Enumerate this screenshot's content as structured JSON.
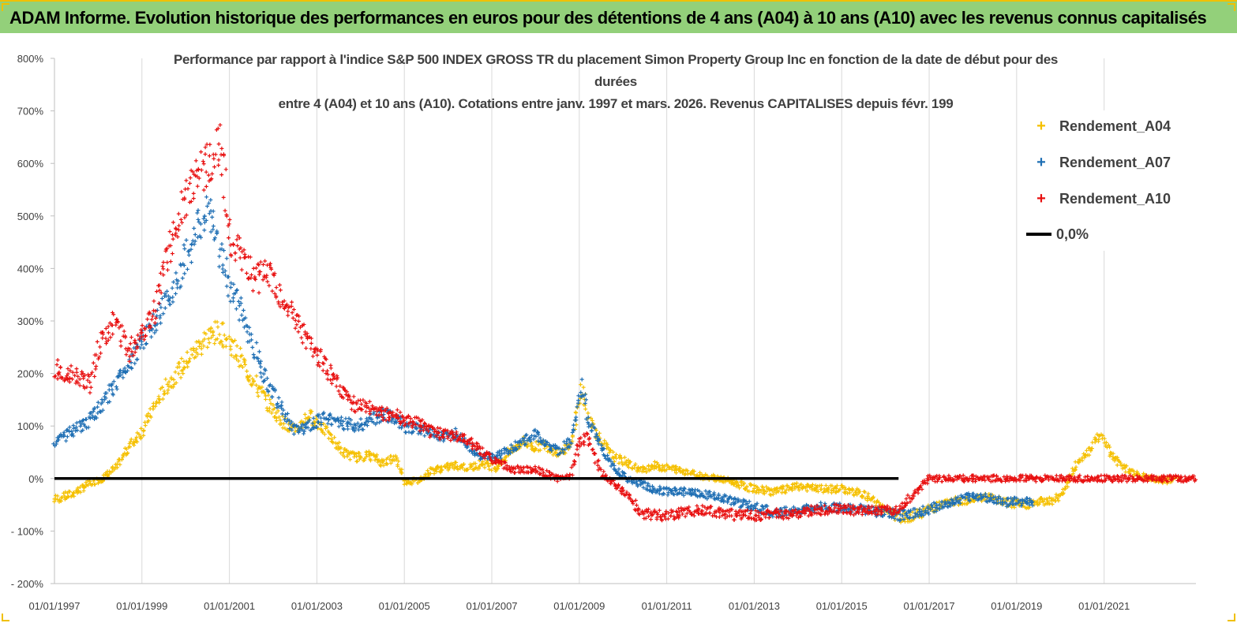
{
  "header": {
    "title": "ADAM Informe. Evolution historique des performances en euros pour des détentions de 4 ans (A04) à 10 ans (A10) avec les revenus connus capitalisés"
  },
  "colors": {
    "banner": "#93d07a",
    "a04": "#f5c000",
    "a07": "#1f6fb4",
    "a10": "#e81010",
    "zero": "#000000"
  },
  "chart_data": {
    "type": "scatter",
    "title_lines": [
      "Performance par rapport à l'indice S&P 500 INDEX GROSS TR  du placement Simon Property Group Inc en fonction de la date de début pour des",
      "durées",
      "entre 4 (A04) et 10 ans (A10). Cotations entre janv. 1997 et mars. 2026. Revenus CAPITALISES depuis févr. 199"
    ],
    "ylim": [
      -200,
      800
    ],
    "yticks": [
      800,
      700,
      600,
      500,
      400,
      300,
      200,
      100,
      0,
      -100,
      -200
    ],
    "ytick_labels": [
      "800%",
      "700%",
      "600%",
      "500%",
      "400%",
      "300%",
      "200%",
      "100%",
      "0%",
      "- 100%",
      "- 200%"
    ],
    "xlim": [
      1997.0,
      2023.1
    ],
    "xticks": [
      1997,
      1999,
      2001,
      2003,
      2005,
      2007,
      2009,
      2011,
      2013,
      2015,
      2017,
      2019,
      2021
    ],
    "xtick_labels": [
      "01/01/1997",
      "01/01/1999",
      "01/01/2001",
      "01/01/2003",
      "01/01/2005",
      "01/01/2007",
      "01/01/2009",
      "01/01/2011",
      "01/01/2013",
      "01/01/2015",
      "01/01/2017",
      "01/01/2019",
      "01/01/2021"
    ],
    "grid": "vertical",
    "legend_position": "top-right",
    "series": [
      {
        "name": "Rendement_A04",
        "marker": "+",
        "x": [
          1997.0,
          1997.4,
          1997.8,
          1998.1,
          1998.4,
          1998.7,
          1999.0,
          1999.3,
          1999.6,
          1999.9,
          2000.2,
          2000.5,
          2000.8,
          2001.0,
          2001.3,
          2001.6,
          2001.9,
          2002.2,
          2002.5,
          2002.8,
          2003.0,
          2003.3,
          2003.6,
          2003.9,
          2004.2,
          2004.5,
          2004.8,
          2005.0,
          2005.3,
          2005.6,
          2005.9,
          2006.2,
          2006.5,
          2006.8,
          2007.1,
          2007.4,
          2007.7,
          2007.95,
          2008.2,
          2008.5,
          2008.8,
          2009.05,
          2009.2,
          2009.5,
          2009.8,
          2010.1,
          2010.4,
          2010.7,
          2011.0,
          2011.4,
          2011.8,
          2012.2,
          2012.6,
          2013.0,
          2013.5,
          2014.0,
          2014.5,
          2015.0,
          2015.5,
          2016.0,
          2016.3,
          2016.7,
          2017.1,
          2017.5,
          2017.9,
          2018.3,
          2018.7,
          2019.1,
          2019.5,
          2019.9,
          2020.1,
          2020.4,
          2020.7,
          2020.9,
          2021.2,
          2021.5,
          2021.8,
          2022.1,
          2022.4,
          2022.7
        ],
        "y": [
          -40,
          -30,
          -10,
          0,
          20,
          60,
          90,
          140,
          180,
          210,
          240,
          270,
          280,
          260,
          220,
          180,
          140,
          110,
          90,
          120,
          110,
          80,
          50,
          40,
          45,
          30,
          40,
          -5,
          -5,
          15,
          20,
          25,
          20,
          30,
          20,
          50,
          70,
          60,
          65,
          50,
          60,
          170,
          120,
          70,
          40,
          30,
          15,
          25,
          20,
          15,
          5,
          0,
          -10,
          -20,
          -25,
          -15,
          -20,
          -20,
          -30,
          -60,
          -75,
          -70,
          -55,
          -45,
          -40,
          -35,
          -45,
          -50,
          -45,
          -40,
          -20,
          30,
          60,
          85,
          40,
          20,
          5,
          0,
          -5,
          0
        ]
      },
      {
        "name": "Rendement_A07",
        "marker": "+",
        "x": [
          1997.0,
          1997.4,
          1997.8,
          1998.1,
          1998.4,
          1998.7,
          1999.0,
          1999.3,
          1999.6,
          1999.9,
          2000.2,
          2000.5,
          2000.8,
          2001.0,
          2001.3,
          2001.6,
          2001.9,
          2002.2,
          2002.5,
          2002.8,
          2003.0,
          2003.3,
          2003.6,
          2003.9,
          2004.2,
          2004.5,
          2004.8,
          2005.0,
          2005.3,
          2005.6,
          2005.9,
          2006.2,
          2006.5,
          2006.8,
          2007.1,
          2007.4,
          2007.7,
          2007.95,
          2008.2,
          2008.5,
          2008.8,
          2009.05,
          2009.2,
          2009.5,
          2009.8,
          2010.1,
          2010.4,
          2010.7,
          2011.0,
          2011.4,
          2011.8,
          2012.2,
          2012.6,
          2013.0,
          2013.5,
          2014.0,
          2014.5,
          2015.0,
          2015.5,
          2016.0,
          2016.3,
          2016.7,
          2017.1,
          2017.5,
          2017.9,
          2018.3,
          2018.7,
          2019.1,
          2019.4
        ],
        "y": [
          70,
          90,
          110,
          140,
          180,
          220,
          260,
          300,
          340,
          400,
          460,
          510,
          430,
          370,
          310,
          240,
          180,
          130,
          90,
          100,
          110,
          115,
          105,
          100,
          110,
          120,
          115,
          100,
          95,
          90,
          80,
          85,
          60,
          40,
          40,
          55,
          70,
          85,
          70,
          50,
          70,
          180,
          110,
          60,
          20,
          0,
          -10,
          -20,
          -25,
          -25,
          -30,
          -35,
          -45,
          -55,
          -65,
          -60,
          -55,
          -55,
          -60,
          -65,
          -70,
          -65,
          -55,
          -45,
          -35,
          -35,
          -45,
          -45,
          -45
        ]
      },
      {
        "name": "Rendement_A10",
        "marker": "+",
        "x": [
          1997.0,
          1997.4,
          1997.8,
          1998.1,
          1998.4,
          1998.7,
          1999.0,
          1999.3,
          1999.6,
          1999.9,
          2000.2,
          2000.5,
          2000.8,
          2001.0,
          2001.3,
          2001.6,
          2001.9,
          2002.2,
          2002.5,
          2002.8,
          2003.0,
          2003.3,
          2003.6,
          2003.9,
          2004.2,
          2004.5,
          2004.8,
          2005.0,
          2005.3,
          2005.6,
          2005.9,
          2006.2,
          2006.5,
          2006.8,
          2007.1,
          2007.4,
          2007.7,
          2007.95,
          2008.2,
          2008.5,
          2008.8,
          2009.0,
          2009.2,
          2009.5,
          2009.8,
          2010.1,
          2010.4,
          2010.7,
          2011.0,
          2011.4,
          2011.8,
          2012.2,
          2012.6,
          2013.0,
          2013.5,
          2014.0,
          2014.5,
          2015.0,
          2015.5,
          2016.0,
          2016.3,
          2017.0,
          2018.0,
          2019.0,
          2020.0,
          2021.0,
          2022.0,
          2023.1
        ],
        "y": [
          210,
          200,
          180,
          270,
          300,
          240,
          280,
          320,
          430,
          520,
          560,
          600,
          640,
          460,
          420,
          380,
          390,
          340,
          300,
          260,
          240,
          200,
          160,
          140,
          135,
          125,
          120,
          110,
          105,
          90,
          85,
          80,
          70,
          50,
          30,
          20,
          15,
          20,
          10,
          0,
          5,
          70,
          80,
          10,
          -10,
          -30,
          -65,
          -70,
          -70,
          -65,
          -60,
          -65,
          -70,
          -70,
          -68,
          -65,
          -60,
          -58,
          -62,
          -62,
          -60,
          0,
          0,
          0,
          0,
          0,
          0,
          0
        ]
      }
    ],
    "zero_line": {
      "name": "0,0%",
      "value": 0
    }
  }
}
